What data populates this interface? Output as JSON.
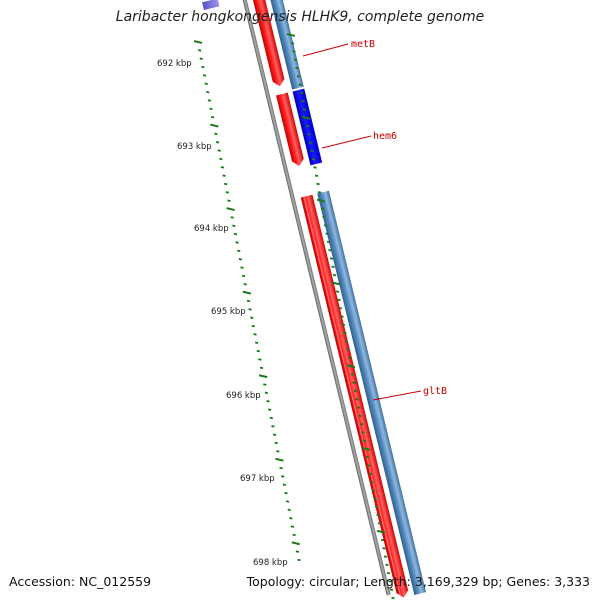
{
  "title": "Laribacter hongkongensis HLHK9, complete genome",
  "footer": {
    "accession": "Accession: NC_012559",
    "summary": "Topology: circular; Length: 3,169,329 bp; Genes: 3,333"
  },
  "scale_labels": [
    "692 kbp",
    "693 kbp",
    "694 kbp",
    "695 kbp",
    "696 kbp",
    "697 kbp",
    "698 kbp"
  ],
  "gene_labels": [
    "metB",
    "hem6",
    "gltB"
  ],
  "colors": {
    "forward_cds": "#ff0000",
    "reverse_cds": "#4a7fb0",
    "highlight_cds": "#0000ee",
    "backbone": "#808080",
    "ticks": "#1a7a1a",
    "label_line": "#cc0000"
  }
}
